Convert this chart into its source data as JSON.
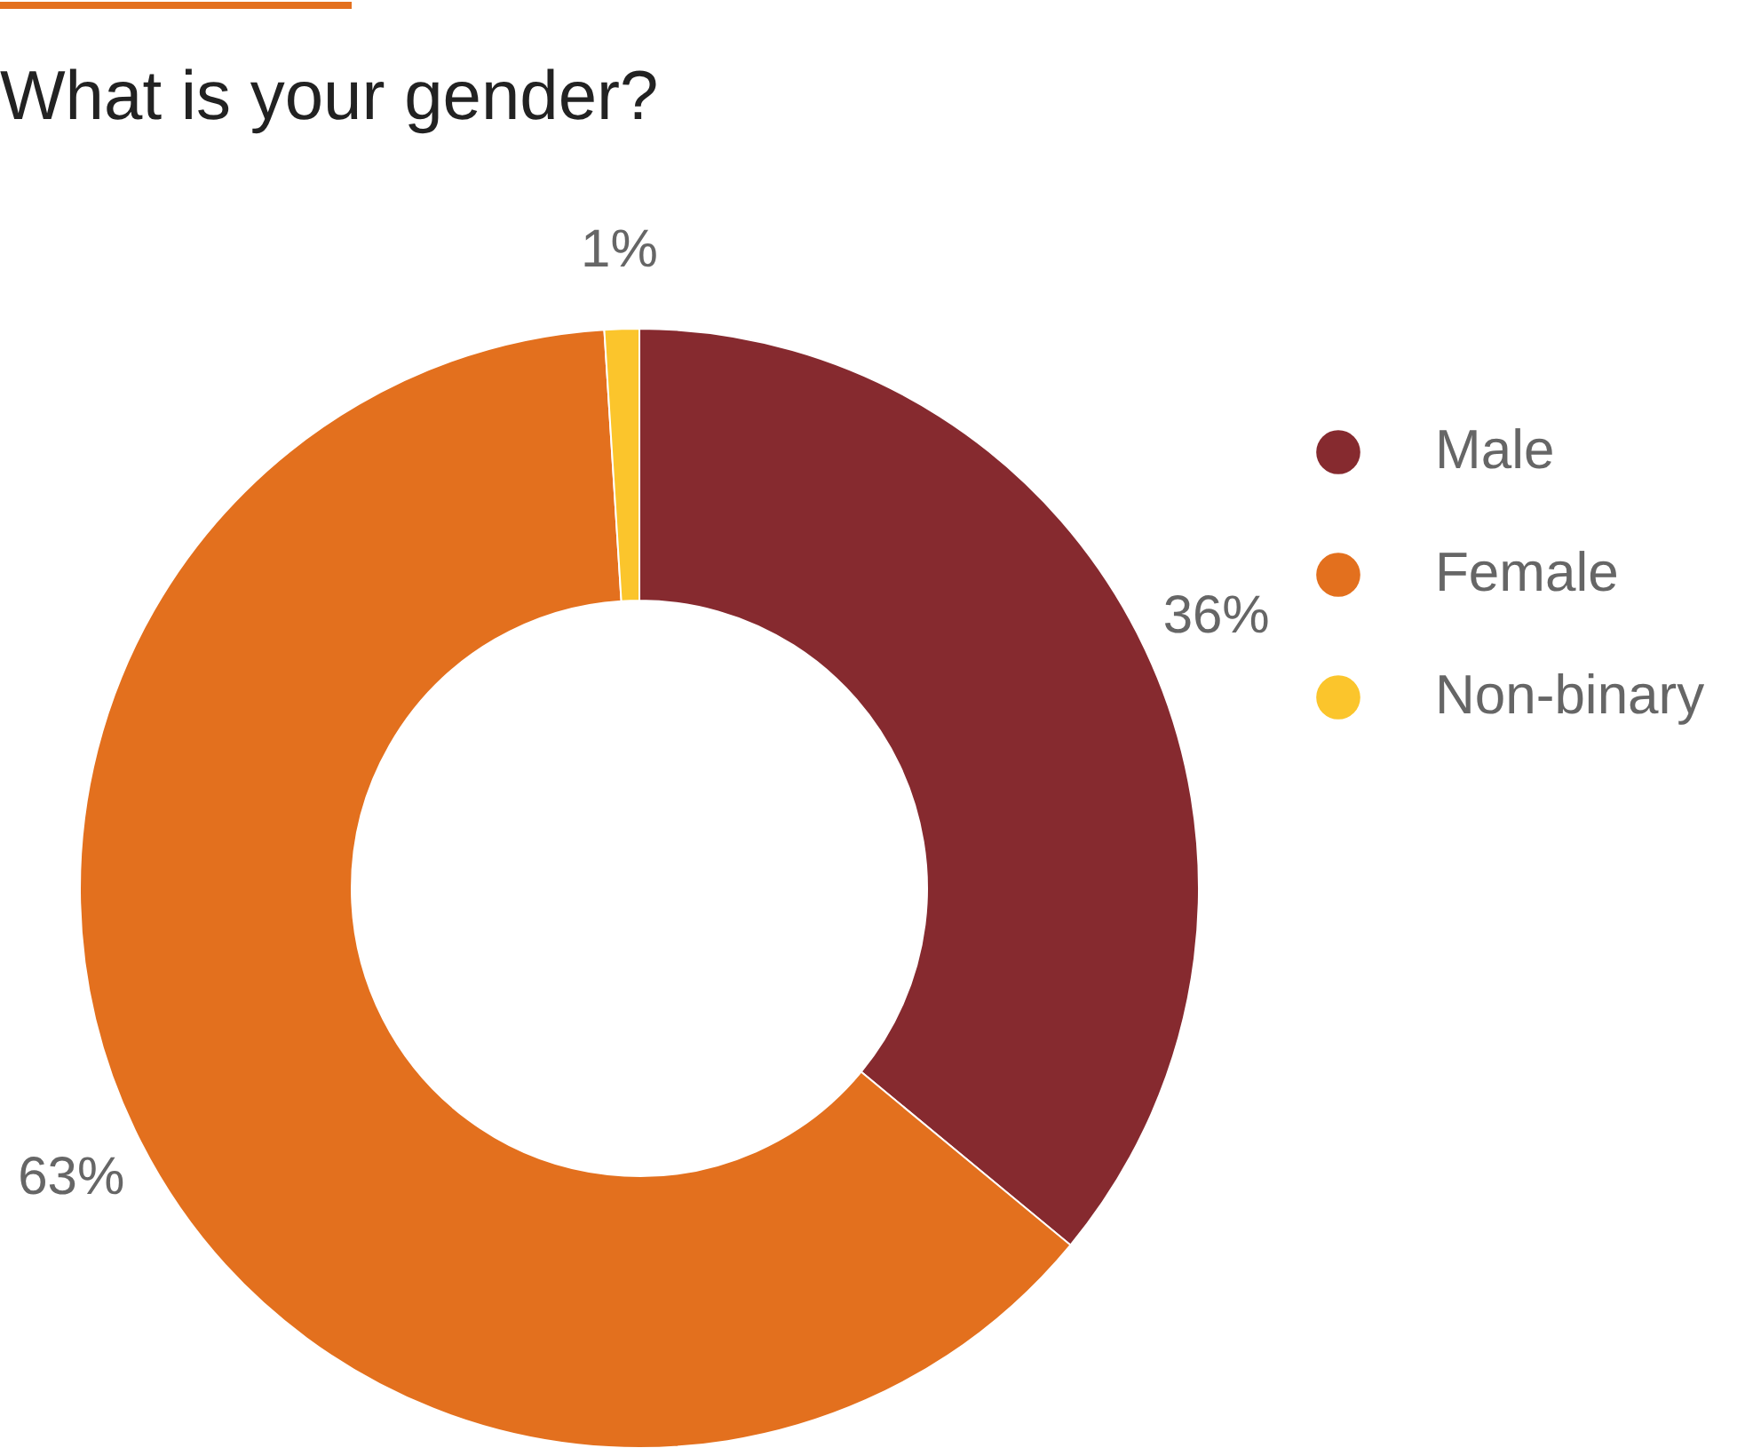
{
  "chart_data": {
    "type": "donut",
    "title": "What is your gender?",
    "categories": [
      "Male",
      "Female",
      "Non-binary"
    ],
    "values": [
      36,
      63,
      1
    ],
    "colors": [
      "#862a2f",
      "#e3701e",
      "#fbc52c"
    ],
    "value_labels": [
      "36%",
      "63%",
      "1%"
    ],
    "legend": "right"
  }
}
